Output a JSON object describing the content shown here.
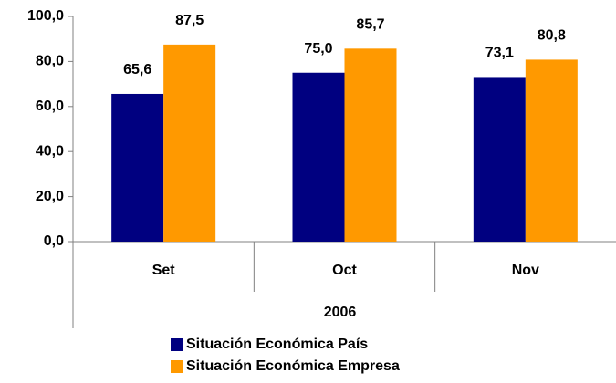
{
  "chart_data": {
    "type": "bar",
    "categories": [
      "Set",
      "Oct",
      "Nov"
    ],
    "x_group": "2006",
    "series": [
      {
        "name": "Situación Económica País",
        "color": "#000080",
        "values": [
          65.6,
          75.0,
          73.1
        ],
        "value_labels": [
          "65,6",
          "75,0",
          "73,1"
        ]
      },
      {
        "name": "Situación Económica Empresa",
        "color": "#FF9900",
        "values": [
          87.5,
          85.7,
          80.8
        ],
        "value_labels": [
          "87,5",
          "85,7",
          "80,8"
        ]
      }
    ],
    "ylim": [
      0,
      100
    ],
    "yticks": [
      {
        "value": 0,
        "label": "0,0"
      },
      {
        "value": 20,
        "label": "20,0"
      },
      {
        "value": 40,
        "label": "40,0"
      },
      {
        "value": 60,
        "label": "60,0"
      },
      {
        "value": 80,
        "label": "80,0"
      },
      {
        "value": 100,
        "label": "100,0"
      }
    ],
    "grid": false
  }
}
